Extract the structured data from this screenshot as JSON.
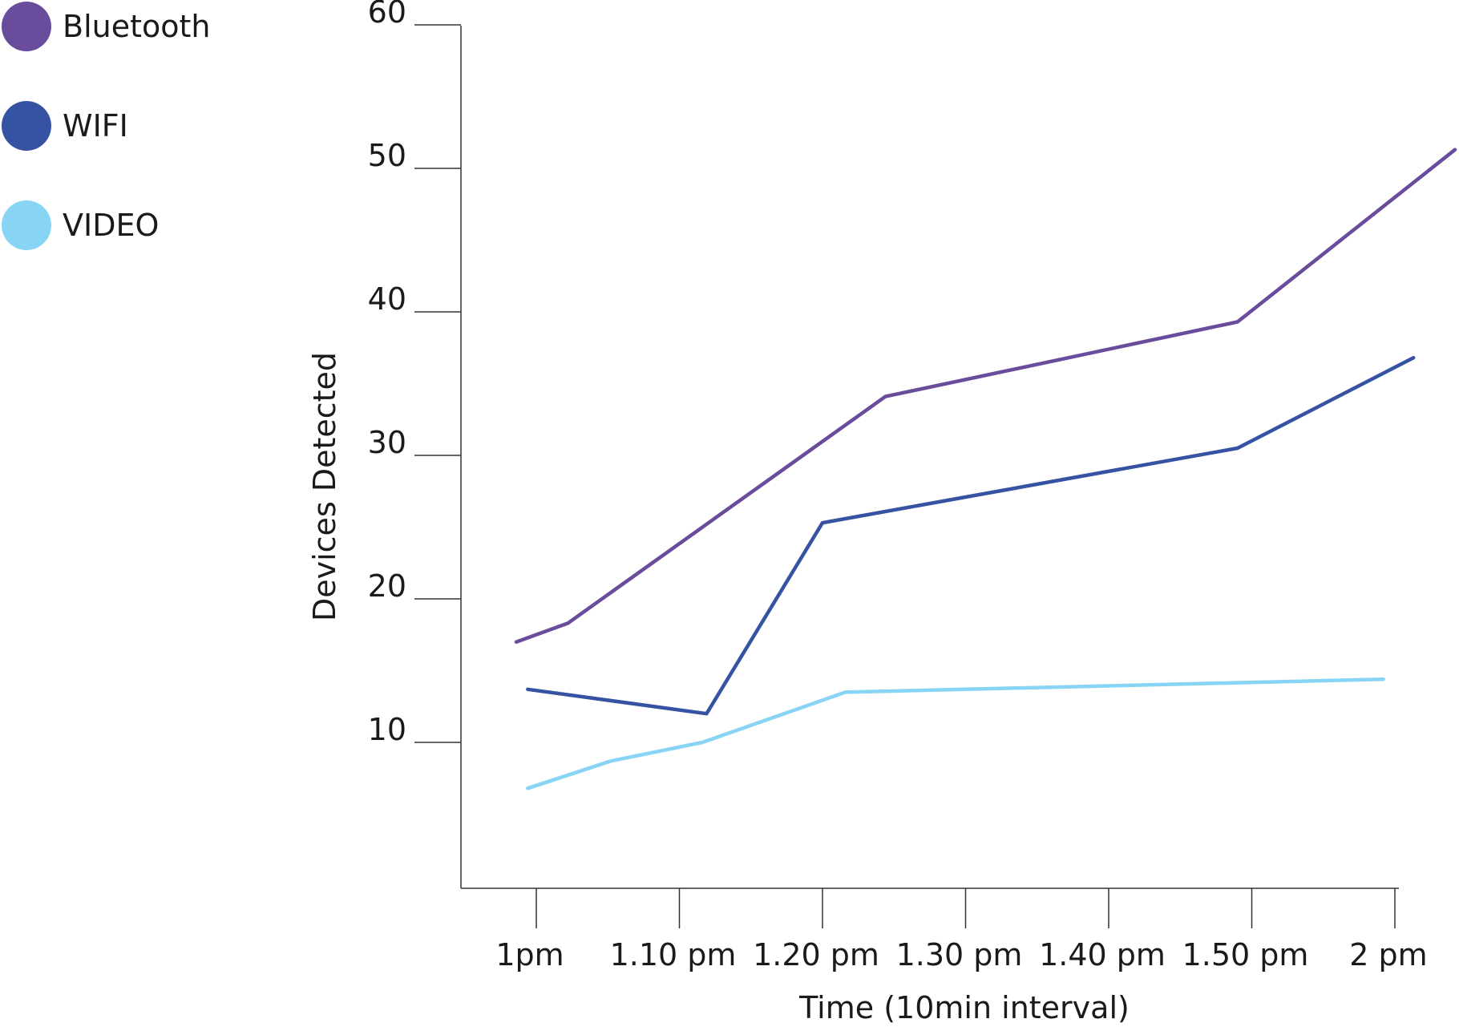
{
  "chart_data": {
    "type": "line",
    "title": "",
    "xlabel": "Time (10min interval)",
    "ylabel": "Devices Detected",
    "categories": [
      "1pm",
      "1.10 pm",
      "1.20 pm",
      "1.30 pm",
      "1.40 pm",
      "1.50 pm",
      "2 pm"
    ],
    "yticks": [
      "10",
      "20",
      "30",
      "40",
      "50",
      "60"
    ],
    "ylim": [
      0,
      60
    ],
    "grid": false,
    "legend_position": "top-left",
    "series": [
      {
        "name": "Bluetooth",
        "color": "#6a4c9c",
        "points": [
          [
            -0.14,
            17.0
          ],
          [
            0.22,
            18.3
          ],
          [
            2.44,
            34.1
          ],
          [
            4.9,
            39.3
          ],
          [
            6.42,
            51.3
          ]
        ]
      },
      {
        "name": "WIFI",
        "color": "#3652a3",
        "points": [
          [
            -0.06,
            13.7
          ],
          [
            1.19,
            12.0
          ],
          [
            2.0,
            25.3
          ],
          [
            4.9,
            30.5
          ],
          [
            6.13,
            36.8
          ]
        ]
      },
      {
        "name": "VIDEO",
        "color": "#87d4f5",
        "points": [
          [
            -0.06,
            6.8
          ],
          [
            0.52,
            8.7
          ],
          [
            1.16,
            10.0
          ],
          [
            2.16,
            13.5
          ],
          [
            5.92,
            14.4
          ]
        ]
      }
    ]
  }
}
